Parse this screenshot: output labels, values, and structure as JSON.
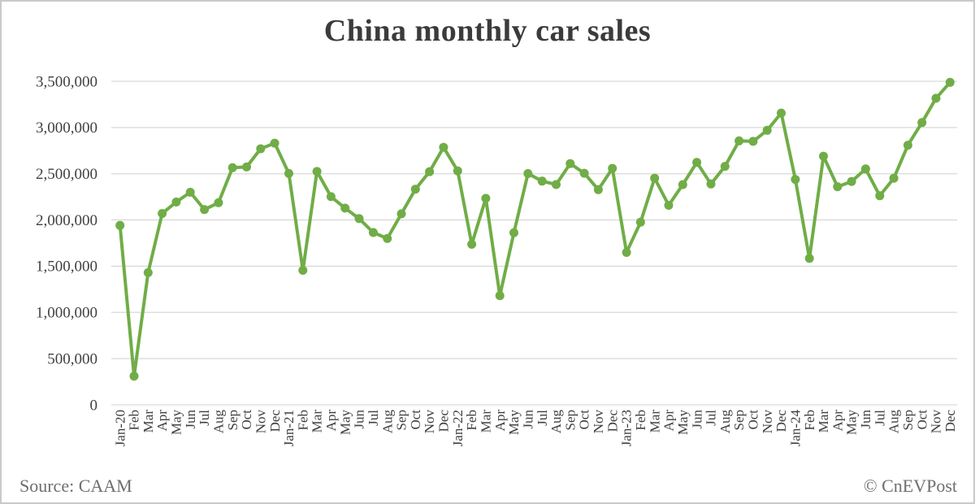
{
  "title": "China monthly car sales",
  "footer": {
    "source": "Source: CAAM",
    "credit": "© CnEVPost"
  },
  "chart_data": {
    "type": "line",
    "title": "China monthly car sales",
    "x_labels": [
      "Jan-20",
      "Feb",
      "Mar",
      "Apr",
      "May",
      "Jun",
      "Jul",
      "Aug",
      "Sep",
      "Oct",
      "Nov",
      "Dec",
      "Jan-21",
      "Feb",
      "Mar",
      "Apr",
      "May",
      "Jun",
      "Jul",
      "Aug",
      "Sep",
      "Oct",
      "Nov",
      "Dec",
      "Jan-22",
      "Feb",
      "Mar",
      "Apr",
      "May",
      "Jun",
      "Jul",
      "Aug",
      "Sep",
      "Oct",
      "Nov",
      "Dec",
      "Jan-23",
      "Feb",
      "Mar",
      "Apr",
      "May",
      "Jun",
      "Jul",
      "Aug",
      "Sep",
      "Oct",
      "Nov",
      "Dec",
      "Jan-24",
      "Feb",
      "Mar",
      "Apr",
      "May",
      "Jun",
      "Jul",
      "Aug",
      "Sep",
      "Oct",
      "Nov",
      "Dec"
    ],
    "series": [
      {
        "name": "China monthly car sales",
        "values": [
          1941000,
          310000,
          1430000,
          2070000,
          2194000,
          2300000,
          2112000,
          2186000,
          2565000,
          2573000,
          2770000,
          2831000,
          2503000,
          1455000,
          2525000,
          2252000,
          2128000,
          2015000,
          1864000,
          1799000,
          2067000,
          2333000,
          2522000,
          2786000,
          2531000,
          1737000,
          2234000,
          1181000,
          1862000,
          2502000,
          2420000,
          2383000,
          2610000,
          2505000,
          2328000,
          2558000,
          1649000,
          1976000,
          2452000,
          2159000,
          2382000,
          2622000,
          2389000,
          2580000,
          2855000,
          2850000,
          2970000,
          3156000,
          2439000,
          1585000,
          2690000,
          2359000,
          2417000,
          2552000,
          2262000,
          2452000,
          2809000,
          3053000,
          3316000,
          3489000
        ]
      }
    ],
    "ylim": [
      0,
      3500000
    ],
    "ytick_step": 500000,
    "ytick_labels": [
      "0",
      "500,000",
      "1,000,000",
      "1,500,000",
      "2,000,000",
      "2,500,000",
      "3,000,000",
      "3,500,000"
    ],
    "grid": "horizontal",
    "legend": "none",
    "line_color": "#70AD47",
    "grid_color": "#D9D9D9",
    "text_color": "#404040",
    "marker": "circle"
  }
}
